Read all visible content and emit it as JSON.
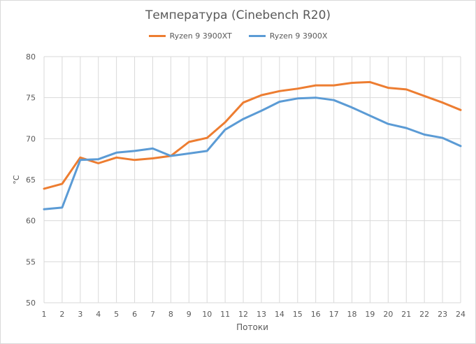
{
  "chart_data": {
    "type": "line",
    "title": "Температура (Cinebench R20)",
    "xlabel": "Потоки",
    "ylabel": "°C",
    "ylim": [
      50,
      80
    ],
    "yticks": [
      50,
      55,
      60,
      65,
      70,
      75,
      80
    ],
    "categories": [
      "1",
      "2",
      "3",
      "4",
      "5",
      "6",
      "7",
      "8",
      "9",
      "10",
      "11",
      "12",
      "13",
      "14",
      "15",
      "16",
      "17",
      "18",
      "19",
      "20",
      "21",
      "22",
      "23",
      "24"
    ],
    "grid": "vertical and horizontal",
    "legend": "top-center",
    "series": [
      {
        "name": "Ryzen 9 3900XT",
        "color": "#ed7d31",
        "values": [
          63.9,
          64.5,
          67.7,
          67.0,
          67.7,
          67.4,
          67.6,
          67.9,
          69.6,
          70.1,
          72.0,
          74.4,
          75.3,
          75.8,
          76.1,
          76.5,
          76.5,
          76.8,
          76.9,
          76.2,
          76.0,
          75.2,
          74.4,
          73.5
        ]
      },
      {
        "name": "Ryzen 9 3900X",
        "color": "#5b9bd5",
        "values": [
          61.4,
          61.6,
          67.4,
          67.5,
          68.3,
          68.5,
          68.8,
          67.9,
          68.2,
          68.5,
          71.1,
          72.4,
          73.4,
          74.5,
          74.9,
          75.0,
          74.7,
          73.8,
          72.8,
          71.8,
          71.3,
          70.5,
          70.1,
          69.1
        ]
      }
    ]
  }
}
